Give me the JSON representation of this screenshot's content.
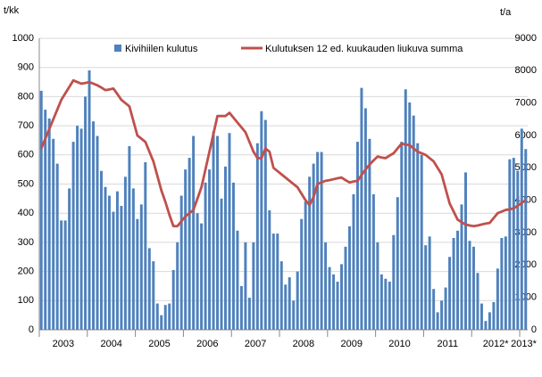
{
  "chart_data": {
    "type": "bar-line",
    "y_label": "t/kk",
    "y2_label": "t/a",
    "categories": [
      "2003",
      null,
      null,
      null,
      null,
      null,
      null,
      null,
      null,
      null,
      null,
      null,
      "2004",
      null,
      null,
      null,
      null,
      null,
      null,
      null,
      null,
      null,
      null,
      null,
      "2005",
      null,
      null,
      null,
      null,
      null,
      null,
      null,
      null,
      null,
      null,
      null,
      "2006",
      null,
      null,
      null,
      null,
      null,
      null,
      null,
      null,
      null,
      null,
      null,
      "2007",
      null,
      null,
      null,
      null,
      null,
      null,
      null,
      null,
      null,
      null,
      null,
      "2008",
      null,
      null,
      null,
      null,
      null,
      null,
      null,
      null,
      null,
      null,
      null,
      "2009",
      null,
      null,
      null,
      null,
      null,
      null,
      null,
      null,
      null,
      null,
      null,
      "2010",
      null,
      null,
      null,
      null,
      null,
      null,
      null,
      null,
      null,
      null,
      null,
      "2011",
      null,
      null,
      null,
      null,
      null,
      null,
      null,
      null,
      null,
      null,
      null,
      "2012*",
      null,
      null,
      null,
      null,
      null,
      null,
      null,
      null,
      null,
      null,
      null,
      "2013*",
      null
    ],
    "series": [
      {
        "name": "Kivihiilen kulutus",
        "color": "#4f81bd",
        "kind": "bar",
        "values": [
          820,
          755,
          725,
          655,
          570,
          375,
          375,
          485,
          645,
          700,
          690,
          800,
          890,
          715,
          665,
          545,
          490,
          460,
          405,
          475,
          425,
          525,
          630,
          485,
          380,
          430,
          575,
          280,
          235,
          90,
          50,
          85,
          90,
          205,
          300,
          460,
          550,
          590,
          665,
          400,
          365,
          505,
          550,
          680,
          665,
          450,
          560,
          675,
          505,
          340,
          150,
          300,
          110,
          300,
          640,
          750,
          720,
          410,
          330,
          330,
          235,
          155,
          180,
          100,
          200,
          380,
          440,
          525,
          570,
          610,
          610,
          300,
          215,
          190,
          165,
          225,
          285,
          355,
          465,
          645,
          830,
          760,
          655,
          465,
          300,
          190,
          175,
          165,
          325,
          455,
          645,
          825,
          780,
          735,
          640,
          600,
          290,
          320,
          140,
          60,
          100,
          145,
          250,
          315,
          340,
          430,
          540,
          305,
          285,
          195,
          90,
          30,
          60,
          95,
          210,
          315,
          320,
          585,
          590,
          545,
          690,
          620
        ]
      },
      {
        "name": "Kulutuksen 12 ed. kuukauden liukuva summa",
        "color": "#c0504d",
        "kind": "line",
        "axis": "y2",
        "values": [
          5600,
          5900,
          6200,
          6500,
          6800,
          7100,
          7300,
          7500,
          7700,
          7650,
          7600,
          7620,
          7650,
          7600,
          7550,
          7480,
          7400,
          7420,
          7450,
          7280,
          7100,
          7000,
          6900,
          6450,
          6000,
          5900,
          5800,
          5500,
          5200,
          4750,
          4300,
          3950,
          3550,
          3200,
          3200,
          3350,
          3500,
          3600,
          3700,
          4050,
          4400,
          4950,
          5500,
          6050,
          6600,
          6600,
          6600,
          6700,
          6550,
          6400,
          6250,
          6100,
          5800,
          5500,
          5300,
          5300,
          5600,
          5500,
          5000,
          4900,
          4800,
          4700,
          4600,
          4500,
          4400,
          4200,
          4000,
          3850,
          4100,
          4500,
          4550,
          4600,
          4620,
          4650,
          4680,
          4700,
          4620,
          4550,
          4580,
          4600,
          4780,
          4950,
          5100,
          5230,
          5350,
          5320,
          5300,
          5380,
          5450,
          5600,
          5750,
          5720,
          5700,
          5600,
          5500,
          5450,
          5400,
          5300,
          5200,
          5000,
          4800,
          4350,
          3900,
          3650,
          3400,
          3320,
          3250,
          3220,
          3200,
          3220,
          3250,
          3280,
          3300,
          3450,
          3600,
          3650,
          3700,
          3720,
          3750,
          3830,
          3920,
          4000
        ]
      }
    ],
    "ylim": [
      0,
      1000
    ],
    "yticks": [
      0,
      100,
      200,
      300,
      400,
      500,
      600,
      700,
      800,
      900,
      1000
    ],
    "y2lim": [
      0,
      9000
    ],
    "y2ticks": [
      0,
      1000,
      2000,
      3000,
      4000,
      5000,
      6000,
      7000,
      8000,
      9000
    ],
    "grid": true
  }
}
